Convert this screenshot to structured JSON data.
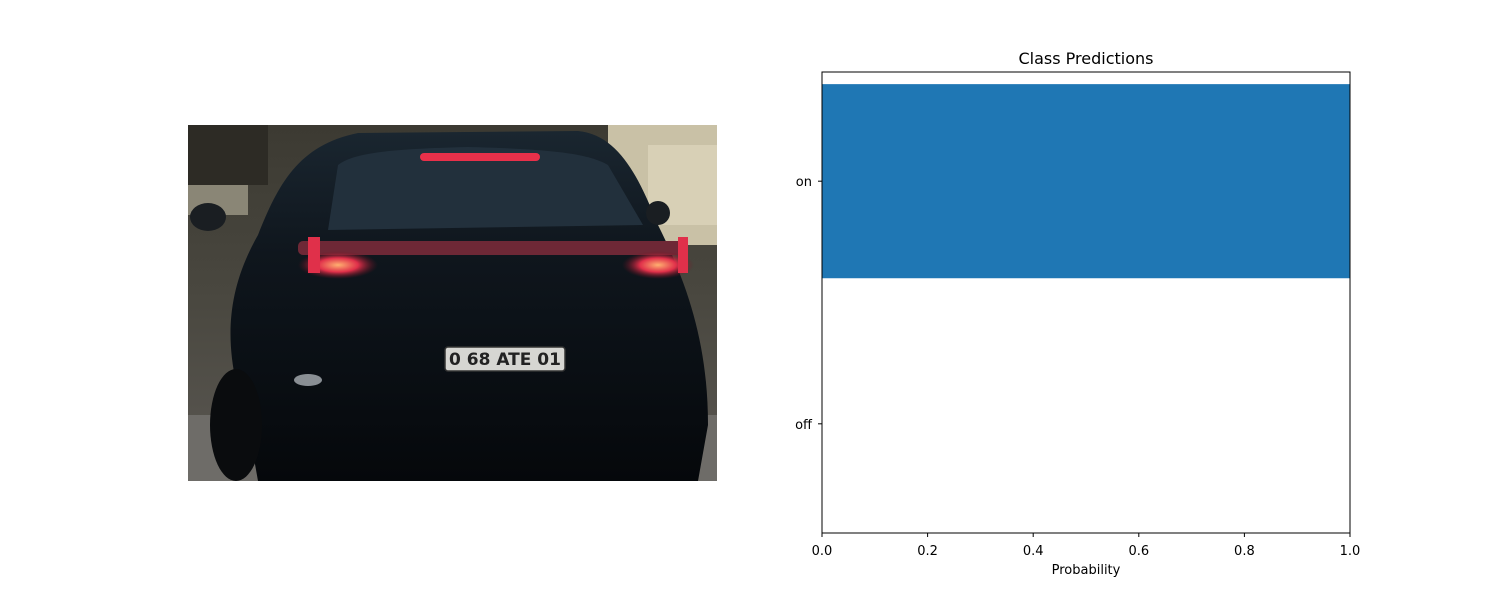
{
  "photo": {
    "description_icon": "car-rear-photo",
    "plate_text": "0 68 ATE 01"
  },
  "chart_data": {
    "type": "bar",
    "orientation": "horizontal",
    "title": "Class Predictions",
    "xlabel": "Probability",
    "ylabel": "",
    "categories": [
      "on",
      "off"
    ],
    "values": [
      1.0,
      0.0
    ],
    "xlim": [
      0.0,
      1.0
    ],
    "xticks": [
      "0.0",
      "0.2",
      "0.4",
      "0.6",
      "0.8",
      "1.0"
    ],
    "grid": false,
    "bar_color": "#1f77b4"
  }
}
